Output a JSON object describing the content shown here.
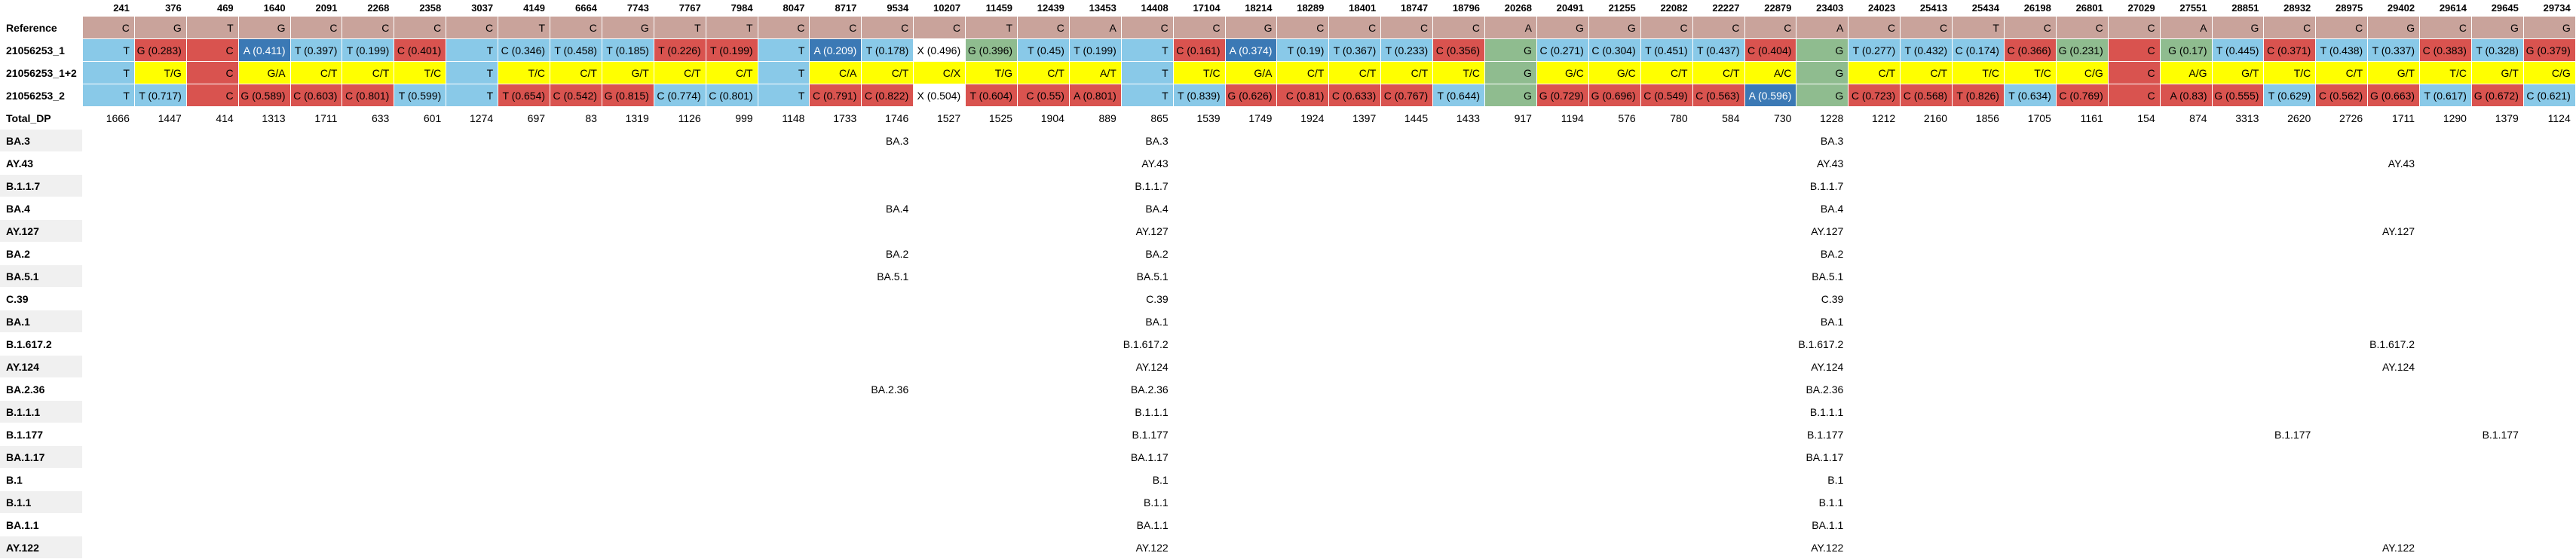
{
  "positions": [
    "241",
    "376",
    "469",
    "1640",
    "2091",
    "2268",
    "2358",
    "3037",
    "4149",
    "6664",
    "7743",
    "7767",
    "7984",
    "8047",
    "8717",
    "9534",
    "10207",
    "11459",
    "12439",
    "13453",
    "14408",
    "17104",
    "18214",
    "18289",
    "18401",
    "18747",
    "18796",
    "20268",
    "20491",
    "21255",
    "22082",
    "22227",
    "22879",
    "23403",
    "24023",
    "25413",
    "25434",
    "26198",
    "26801",
    "27029",
    "27551",
    "28851",
    "28932",
    "28975",
    "29402",
    "29614",
    "29645",
    "29734"
  ],
  "row_labels": {
    "reference": "Reference",
    "sample1": "21056253_1",
    "merged": "21056253_1+2",
    "sample2": "21056253_2",
    "total_dp": "Total_DP"
  },
  "lineages": [
    "BA.3",
    "AY.43",
    "B.1.1.7",
    "BA.4",
    "AY.127",
    "BA.2",
    "BA.5.1",
    "C.39",
    "BA.1",
    "B.1.617.2",
    "AY.124",
    "BA.2.36",
    "B.1.1.1",
    "B.1.177",
    "BA.1.17",
    "B.1",
    "B.1.1",
    "BA.1.1",
    "AY.122"
  ],
  "colors": {
    "ref_bg": "#c9a39b",
    "t_light": "#89c9e8",
    "red": "#d9534f",
    "yellow": "#ffff00",
    "dark_blue": "#3b79b5",
    "green": "#8fbc8f",
    "white": "#ffffff",
    "zebra": "#f0f0f0"
  },
  "columns": [
    {
      "pos": "241",
      "ref": "C",
      "s1": "T",
      "m": "T",
      "s2": "T",
      "dp": "1666",
      "tags": []
    },
    {
      "pos": "376",
      "ref": "G",
      "s1": "G (0.283)",
      "m": "T/G",
      "s2": "T (0.717)",
      "dp": "1447",
      "tags": []
    },
    {
      "pos": "469",
      "ref": "T",
      "s1": "C",
      "m": "C",
      "s2": "C",
      "dp": "414",
      "tags": []
    },
    {
      "pos": "1640",
      "ref": "G",
      "s1": "A (0.411)",
      "m": "G/A",
      "s2": "G (0.589)",
      "dp": "1313",
      "tags": []
    },
    {
      "pos": "2091",
      "ref": "C",
      "s1": "T (0.397)",
      "m": "C/T",
      "s2": "C (0.603)",
      "dp": "1711",
      "tags": []
    },
    {
      "pos": "2268",
      "ref": "C",
      "s1": "T (0.199)",
      "m": "C/T",
      "s2": "C (0.801)",
      "dp": "633",
      "tags": []
    },
    {
      "pos": "2358",
      "ref": "C",
      "s1": "C (0.401)",
      "m": "T/C",
      "s2": "T (0.599)",
      "dp": "601",
      "tags": []
    },
    {
      "pos": "3037",
      "ref": "C",
      "s1": "T",
      "m": "T",
      "s2": "T",
      "dp": "1274",
      "tags": []
    },
    {
      "pos": "4149",
      "ref": "T",
      "s1": "C (0.346)",
      "m": "T/C",
      "s2": "T (0.654)",
      "dp": "697",
      "tags": []
    },
    {
      "pos": "6664",
      "ref": "C",
      "s1": "T (0.458)",
      "m": "C/T",
      "s2": "C (0.542)",
      "dp": "83",
      "tags": []
    },
    {
      "pos": "7743",
      "ref": "G",
      "s1": "T (0.185)",
      "m": "G/T",
      "s2": "G (0.815)",
      "dp": "1319",
      "tags": []
    },
    {
      "pos": "7767",
      "ref": "T",
      "s1": "T (0.226)",
      "m": "C/T",
      "s2": "C (0.774)",
      "dp": "1126",
      "tags": []
    },
    {
      "pos": "7984",
      "ref": "T",
      "s1": "T (0.199)",
      "m": "C/T",
      "s2": "C (0.801)",
      "dp": "999",
      "tags": []
    },
    {
      "pos": "8047",
      "ref": "C",
      "s1": "T",
      "m": "T",
      "s2": "T",
      "dp": "1148",
      "tags": []
    },
    {
      "pos": "8717",
      "ref": "C",
      "s1": "A (0.209)",
      "m": "C/A",
      "s2": "C (0.791)",
      "dp": "1733",
      "tags": []
    },
    {
      "pos": "9534",
      "ref": "C",
      "s1": "T (0.178)",
      "m": "C/T",
      "s2": "C (0.822)",
      "dp": "1746",
      "tags": [
        "BA.3",
        "",
        "",
        "BA.4",
        "",
        "BA.2",
        "BA.5.1",
        "",
        "",
        "",
        "",
        "BA.2.36",
        "",
        "",
        "",
        "",
        "",
        "",
        ""
      ]
    },
    {
      "pos": "10207",
      "ref": "C",
      "s1": "X (0.496)",
      "m": "C/X",
      "s2": "X (0.504)",
      "dp": "1527",
      "tags": []
    },
    {
      "pos": "11459",
      "ref": "T",
      "s1": "G (0.396)",
      "m": "T/G",
      "s2": "T (0.604)",
      "dp": "1525",
      "tags": []
    },
    {
      "pos": "12439",
      "ref": "C",
      "s1": "T (0.45)",
      "m": "C/T",
      "s2": "C (0.55)",
      "dp": "1904",
      "tags": []
    },
    {
      "pos": "13453",
      "ref": "A",
      "s1": "T (0.199)",
      "m": "A/T",
      "s2": "A (0.801)",
      "dp": "889",
      "tags": []
    },
    {
      "pos": "14408",
      "ref": "C",
      "s1": "T",
      "m": "T",
      "s2": "T",
      "dp": "865",
      "tags": [
        "BA.3",
        "AY.43",
        "B.1.1.7",
        "BA.4",
        "AY.127",
        "BA.2",
        "BA.5.1",
        "C.39",
        "BA.1",
        "B.1.617.2",
        "AY.124",
        "BA.2.36",
        "B.1.1.1",
        "B.1.177",
        "BA.1.17",
        "B.1",
        "B.1.1",
        "BA.1.1",
        "AY.122"
      ]
    },
    {
      "pos": "17104",
      "ref": "C",
      "s1": "C (0.161)",
      "m": "T/C",
      "s2": "T (0.839)",
      "dp": "1539",
      "tags": []
    },
    {
      "pos": "18214",
      "ref": "G",
      "s1": "A (0.374)",
      "m": "G/A",
      "s2": "G (0.626)",
      "dp": "1749",
      "tags": []
    },
    {
      "pos": "18289",
      "ref": "C",
      "s1": "T (0.19)",
      "m": "C/T",
      "s2": "C (0.81)",
      "dp": "1924",
      "tags": []
    },
    {
      "pos": "18401",
      "ref": "C",
      "s1": "T (0.367)",
      "m": "C/T",
      "s2": "C (0.633)",
      "dp": "1397",
      "tags": []
    },
    {
      "pos": "18747",
      "ref": "C",
      "s1": "T (0.233)",
      "m": "C/T",
      "s2": "C (0.767)",
      "dp": "1445",
      "tags": []
    },
    {
      "pos": "18796",
      "ref": "C",
      "s1": "C (0.356)",
      "m": "T/C",
      "s2": "T (0.644)",
      "dp": "1433",
      "tags": []
    },
    {
      "pos": "20268",
      "ref": "A",
      "s1": "G",
      "m": "G",
      "s2": "G",
      "dp": "917",
      "tags": []
    },
    {
      "pos": "20491",
      "ref": "G",
      "s1": "C (0.271)",
      "m": "G/C",
      "s2": "G (0.729)",
      "dp": "1194",
      "tags": []
    },
    {
      "pos": "21255",
      "ref": "G",
      "s1": "C (0.304)",
      "m": "G/C",
      "s2": "G (0.696)",
      "dp": "576",
      "tags": []
    },
    {
      "pos": "22082",
      "ref": "C",
      "s1": "T (0.451)",
      "m": "C/T",
      "s2": "C (0.549)",
      "dp": "780",
      "tags": []
    },
    {
      "pos": "22227",
      "ref": "C",
      "s1": "T (0.437)",
      "m": "C/T",
      "s2": "C (0.563)",
      "dp": "584",
      "tags": []
    },
    {
      "pos": "22879",
      "ref": "C",
      "s1": "C (0.404)",
      "m": "A/C",
      "s2": "A (0.596)",
      "dp": "730",
      "tags": []
    },
    {
      "pos": "23403",
      "ref": "A",
      "s1": "G",
      "m": "G",
      "s2": "G",
      "dp": "1228",
      "tags": [
        "BA.3",
        "AY.43",
        "B.1.1.7",
        "BA.4",
        "AY.127",
        "BA.2",
        "BA.5.1",
        "C.39",
        "BA.1",
        "B.1.617.2",
        "AY.124",
        "BA.2.36",
        "B.1.1.1",
        "B.1.177",
        "BA.1.17",
        "B.1",
        "B.1.1",
        "BA.1.1",
        "AY.122"
      ]
    },
    {
      "pos": "24023",
      "ref": "C",
      "s1": "T (0.277)",
      "m": "C/T",
      "s2": "C (0.723)",
      "dp": "1212",
      "tags": []
    },
    {
      "pos": "25413",
      "ref": "C",
      "s1": "T (0.432)",
      "m": "C/T",
      "s2": "C (0.568)",
      "dp": "2160",
      "tags": []
    },
    {
      "pos": "25434",
      "ref": "T",
      "s1": "C (0.174)",
      "m": "T/C",
      "s2": "T (0.826)",
      "dp": "1856",
      "tags": []
    },
    {
      "pos": "26198",
      "ref": "C",
      "s1": "C (0.366)",
      "m": "T/C",
      "s2": "T (0.634)",
      "dp": "1705",
      "tags": []
    },
    {
      "pos": "26801",
      "ref": "C",
      "s1": "G (0.231)",
      "m": "C/G",
      "s2": "C (0.769)",
      "dp": "1161",
      "tags": []
    },
    {
      "pos": "27029",
      "ref": "C",
      "s1": "C",
      "m": "C",
      "s2": "C",
      "dp": "154",
      "tags": []
    },
    {
      "pos": "27551",
      "ref": "A",
      "s1": "G (0.17)",
      "m": "A/G",
      "s2": "A (0.83)",
      "dp": "874",
      "tags": []
    },
    {
      "pos": "28851",
      "ref": "G",
      "s1": "T (0.445)",
      "m": "G/T",
      "s2": "G (0.555)",
      "dp": "3313",
      "tags": []
    },
    {
      "pos": "28932",
      "ref": "C",
      "s1": "C (0.371)",
      "m": "T/C",
      "s2": "T (0.629)",
      "dp": "2620",
      "tags": [
        "",
        "",
        "",
        "",
        "",
        "",
        "",
        "",
        "",
        "",
        "",
        "",
        "",
        "B.1.177",
        "",
        "",
        "",
        "",
        ""
      ]
    },
    {
      "pos": "28975",
      "ref": "C",
      "s1": "T (0.438)",
      "m": "C/T",
      "s2": "C (0.562)",
      "dp": "2726",
      "tags": []
    },
    {
      "pos": "29402",
      "ref": "G",
      "s1": "T (0.337)",
      "m": "G/T",
      "s2": "G (0.663)",
      "dp": "1711",
      "tags": [
        "",
        "AY.43",
        "",
        "",
        "AY.127",
        "",
        "",
        "",
        "",
        "B.1.617.2",
        "AY.124",
        "",
        "",
        "",
        "",
        "",
        "",
        "",
        "AY.122"
      ]
    },
    {
      "pos": "29614",
      "ref": "C",
      "s1": "C (0.383)",
      "m": "T/C",
      "s2": "T (0.617)",
      "dp": "1290",
      "tags": []
    },
    {
      "pos": "29645",
      "ref": "G",
      "s1": "T (0.328)",
      "m": "G/T",
      "s2": "G (0.672)",
      "dp": "1379",
      "tags": [
        "",
        "",
        "",
        "",
        "",
        "",
        "",
        "",
        "",
        "",
        "",
        "",
        "",
        "B.1.177",
        "",
        "",
        "",
        "",
        ""
      ]
    },
    {
      "pos": "29734",
      "ref": "G",
      "s1": "G (0.379)",
      "m": "C/G",
      "s2": "C (0.621)",
      "dp": "1124",
      "tags": []
    }
  ]
}
